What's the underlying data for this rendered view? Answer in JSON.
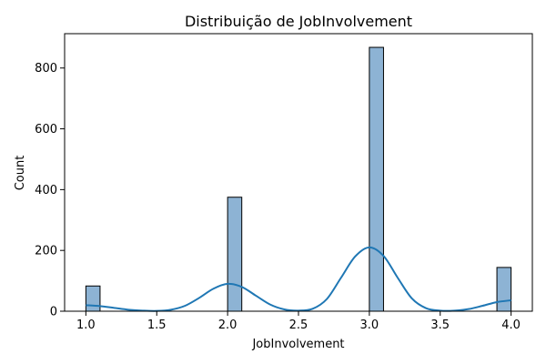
{
  "chart_data": {
    "type": "bar",
    "title": "Distribuição de JobInvolvement",
    "xlabel": "JobInvolvement",
    "ylabel": "Count",
    "xlim": [
      0.85,
      4.15
    ],
    "ylim": [
      0,
      913
    ],
    "x_ticks": [
      "1.0",
      "1.5",
      "2.0",
      "2.5",
      "3.0",
      "3.5",
      "4.0"
    ],
    "y_ticks": [
      "0",
      "200",
      "400",
      "600",
      "800"
    ],
    "bin_width": 0.1,
    "bars": [
      {
        "x": 1.0,
        "value": 83
      },
      {
        "x": 2.0,
        "value": 375
      },
      {
        "x": 3.0,
        "value": 868
      },
      {
        "x": 3.9,
        "value": 144
      }
    ],
    "kde": {
      "x": [
        1.0,
        1.1,
        1.2,
        1.3,
        1.4,
        1.5,
        1.6,
        1.7,
        1.8,
        1.9,
        2.0,
        2.1,
        2.2,
        2.3,
        2.4,
        2.5,
        2.6,
        2.7,
        2.8,
        2.9,
        3.0,
        3.1,
        3.2,
        3.3,
        3.4,
        3.5,
        3.6,
        3.7,
        3.8,
        3.9,
        4.0
      ],
      "y": [
        20,
        17,
        11,
        5,
        2,
        1,
        5,
        18,
        44,
        74,
        90,
        80,
        51,
        22,
        6,
        2,
        8,
        40,
        110,
        180,
        210,
        182,
        110,
        42,
        10,
        2,
        2,
        7,
        18,
        30,
        36
      ]
    },
    "colors": {
      "bar_fill": "#8db3d4",
      "bar_edge": "#000000",
      "kde_line": "#1f77b4"
    },
    "grid": false,
    "legend": "none"
  }
}
